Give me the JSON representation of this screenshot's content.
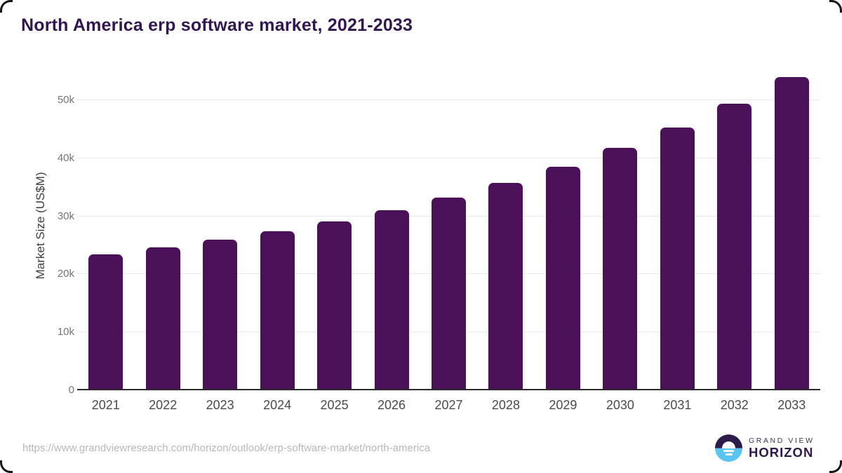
{
  "title": "North America erp software market, 2021-2033",
  "source_url": "https://www.grandviewresearch.com/horizon/outlook/erp-software-market/north-america",
  "logo": {
    "top_text": "GRAND VIEW",
    "bottom_text": "HORIZON",
    "dark_color": "#2d1b4a",
    "blue_color": "#59c5f0"
  },
  "colors": {
    "bar": "#4a1158",
    "title": "#31164f",
    "gridline": "#e9e9e9",
    "axis_line": "#2b2b2b",
    "y_tick_label": "#757575",
    "x_tick_label": "#4a4a4a",
    "source_url": "#b8b8b8"
  },
  "chart_data": {
    "type": "bar",
    "title": "North America erp software market, 2021-2033",
    "categories": [
      "2021",
      "2022",
      "2023",
      "2024",
      "2025",
      "2026",
      "2027",
      "2028",
      "2029",
      "2030",
      "2031",
      "2032",
      "2033"
    ],
    "values": [
      23200,
      24400,
      25700,
      27200,
      28900,
      30800,
      33000,
      35500,
      38300,
      41500,
      45100,
      49200,
      53800
    ],
    "unit": "US$M",
    "xlabel": "",
    "ylabel": "Market Size (US$M)",
    "ylim": [
      0,
      55200
    ],
    "yticks": [
      0,
      10000,
      20000,
      30000,
      40000,
      50000
    ],
    "ytick_labels": [
      "0",
      "10k",
      "20k",
      "30k",
      "40k",
      "50k"
    ],
    "grid": "horizontal-only",
    "legend": "none",
    "bar_color": "#4a1158"
  }
}
